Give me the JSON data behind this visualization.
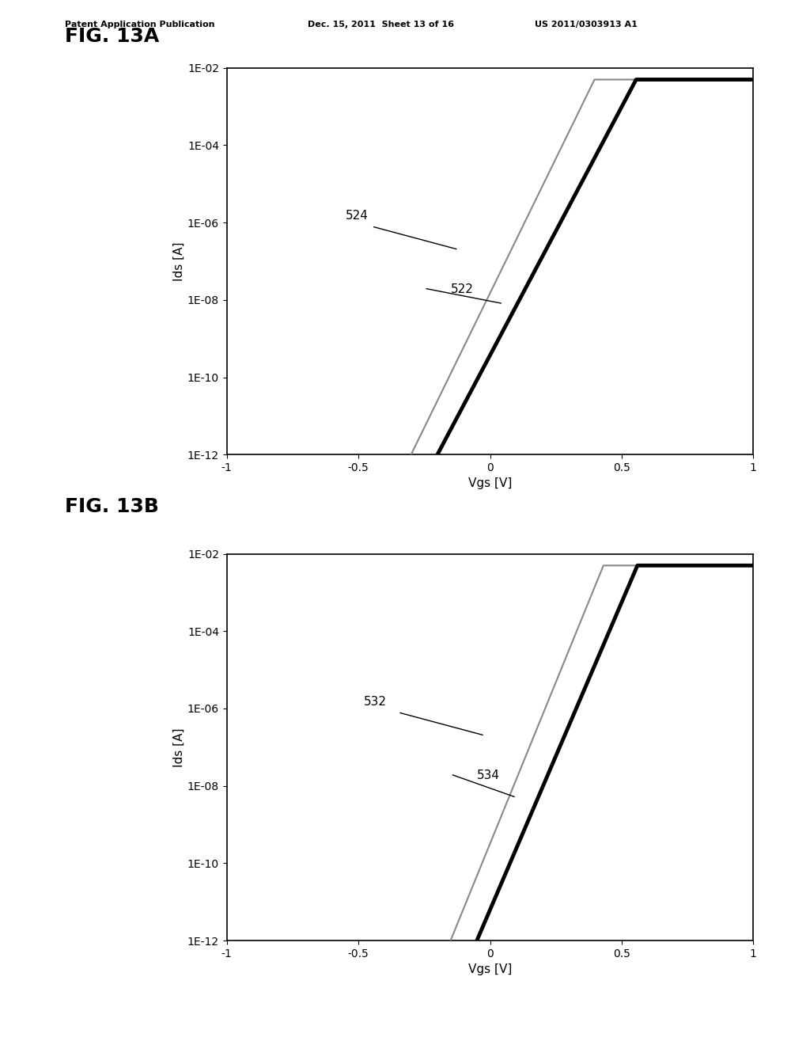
{
  "header_left": "Patent Application Publication",
  "header_mid": "Dec. 15, 2011  Sheet 13 of 16",
  "header_right": "US 2011/0303913 A1",
  "fig_a_label": "FIG. 13A",
  "fig_b_label": "FIG. 13B",
  "xlabel": "Vgs [V]",
  "ylabel": "Ids [A]",
  "xlim": [
    -1,
    1
  ],
  "ylim_log": [
    -12,
    -2
  ],
  "yticks_labels": [
    "1E-12",
    "1E-10",
    "1E-08",
    "1E-06",
    "1E-04",
    "1E-02"
  ],
  "yticks_vals": [
    1e-12,
    1e-10,
    1e-08,
    1e-06,
    0.0001,
    0.01
  ],
  "xticks": [
    -1,
    -0.5,
    0,
    0.5,
    1
  ],
  "bg_color": "#ffffff",
  "curve_color_thick": "#000000",
  "curve_color_thin": "#555555",
  "label_522": "522",
  "label_524": "524",
  "label_532": "532",
  "label_534": "534",
  "annotation_fontsize": 11,
  "axis_fontsize": 10,
  "ylabel_fontsize": 11,
  "fig_label_fontsize": 18
}
